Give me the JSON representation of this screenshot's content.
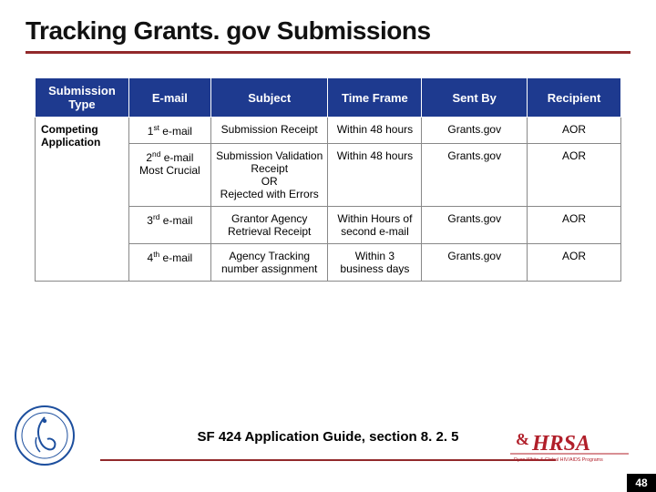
{
  "title": "Tracking Grants. gov Submissions",
  "caption": "SF 424 Application Guide, section 8. 2. 5",
  "page_number": "48",
  "colors": {
    "accent_rule": "#92292b",
    "table_header_bg": "#1e3a8f",
    "table_header_fg": "#ffffff",
    "table_border": "#888888",
    "pagebox_bg": "#000000",
    "pagebox_fg": "#ffffff",
    "hhs_blue": "#1d4f9e",
    "hrsa_red": "#b11f2a"
  },
  "table": {
    "columns": [
      "Submission Type",
      "E-mail",
      "Subject",
      "Time Frame",
      "Sent By",
      "Recipient"
    ],
    "col_widths_pct": [
      16,
      14,
      20,
      16,
      18,
      16
    ],
    "rowhead": "Competing Application",
    "rows": [
      {
        "email_ord": "1",
        "email_suffix": "st",
        "email_note": "e-mail",
        "subject": "Submission Receipt",
        "timeframe": "Within 48 hours",
        "sentby": "Grants.gov",
        "recipient": "AOR"
      },
      {
        "email_ord": "2",
        "email_suffix": "nd",
        "email_note": "e-mail\nMost Crucial",
        "subject": "Submission Validation Receipt\nOR\nRejected with Errors",
        "timeframe": "Within 48 hours",
        "sentby": "Grants.gov",
        "recipient": "AOR"
      },
      {
        "email_ord": "3",
        "email_suffix": "rd",
        "email_note": "e-mail",
        "subject": "Grantor Agency Retrieval Receipt",
        "timeframe": "Within Hours of second e-mail",
        "sentby": "Grants.gov",
        "recipient": "AOR"
      },
      {
        "email_ord": "4",
        "email_suffix": "th",
        "email_note": "e-mail",
        "subject": "Agency Tracking number assignment",
        "timeframe": "Within 3 business days",
        "sentby": "Grants.gov",
        "recipient": "AOR"
      }
    ]
  },
  "logos": {
    "hhs_alt": "hhs-seal-icon",
    "hrsa_main": "HRSA",
    "hrsa_sub": "Ryan White & Global HIV/AIDS Programs"
  }
}
